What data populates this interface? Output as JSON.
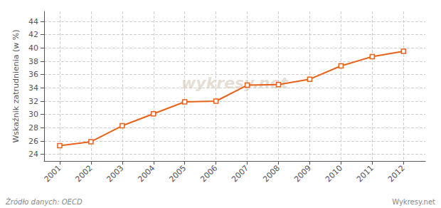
{
  "chart_data": {
    "type": "line",
    "ylabel": "Wskaźnik zatrudnienia (w %)",
    "watermark": "wykresy.net",
    "source": "Źródło danych: OECD",
    "brand": "Wykresy.net",
    "x": [
      2001,
      2002,
      2003,
      2004,
      2005,
      2006,
      2007,
      2008,
      2009,
      2010,
      2011,
      2012
    ],
    "values": [
      25.3,
      25.9,
      28.3,
      30.1,
      31.9,
      32.0,
      34.4,
      34.5,
      35.3,
      37.3,
      38.7,
      39.5
    ],
    "color": "#e8621a",
    "marker": "square",
    "line_style": "solid",
    "xlim": [
      2000.5,
      2012.7
    ],
    "xticks": [
      2001,
      2002,
      2003,
      2004,
      2005,
      2006,
      2007,
      2008,
      2009,
      2010,
      2011,
      2012
    ],
    "ylim": [
      23,
      45.5
    ],
    "yticks": [
      24,
      26,
      28,
      30,
      32,
      34,
      36,
      38,
      40,
      42,
      44
    ],
    "grid": true
  }
}
